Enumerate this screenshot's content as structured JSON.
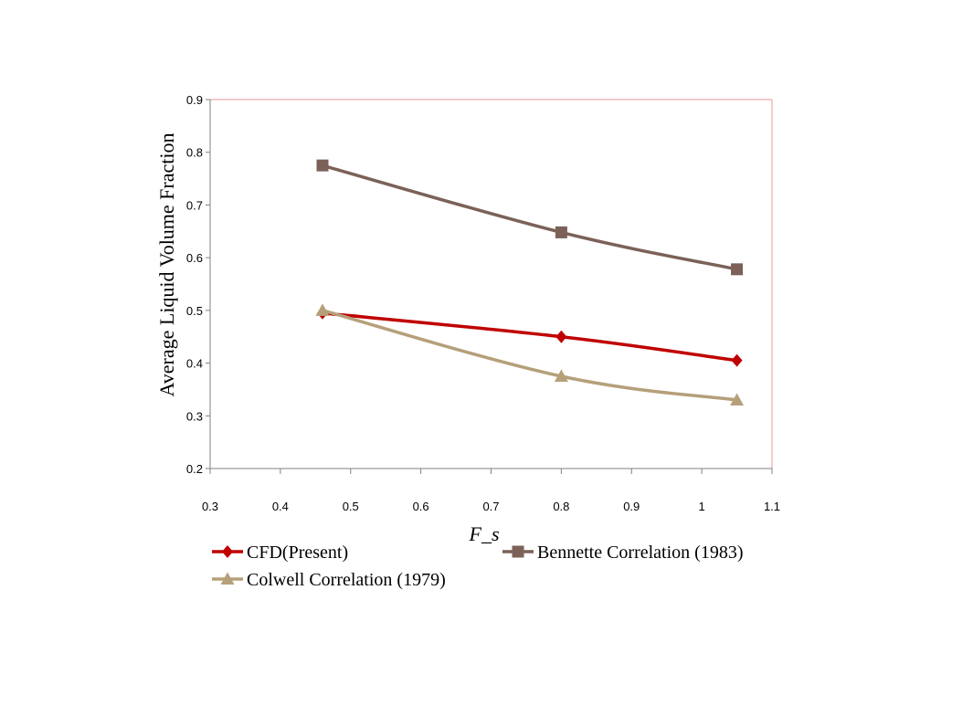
{
  "chart_data": {
    "type": "line",
    "xlabel": "F_s",
    "ylabel": "Average Liquid Volume Fraction",
    "xlim": [
      0.3,
      1.1
    ],
    "ylim": [
      0.2,
      0.9
    ],
    "xticks": [
      "0.3",
      "0.4",
      "0.5",
      "0.6",
      "0.7",
      "0.8",
      "0.9",
      "1",
      "1.1"
    ],
    "yticks": [
      "0.2",
      "0.3",
      "0.4",
      "0.5",
      "0.6",
      "0.7",
      "0.8",
      "0.9"
    ],
    "grid": false,
    "legend_position": "bottom",
    "series": [
      {
        "name": "CFD(Present)",
        "color": "#c00000",
        "marker": "diamond",
        "x": [
          0.46,
          0.8,
          1.05
        ],
        "y": [
          0.495,
          0.45,
          0.405
        ]
      },
      {
        "name": "Bennette Correlation (1983)",
        "color": "#7b6158",
        "marker": "square",
        "x": [
          0.46,
          0.8,
          1.05
        ],
        "y": [
          0.775,
          0.648,
          0.578
        ]
      },
      {
        "name": "Colwell Correlation (1979)",
        "color": "#b5a07a",
        "marker": "triangle",
        "x": [
          0.46,
          0.8,
          1.05
        ],
        "y": [
          0.5,
          0.375,
          0.33
        ]
      }
    ]
  }
}
